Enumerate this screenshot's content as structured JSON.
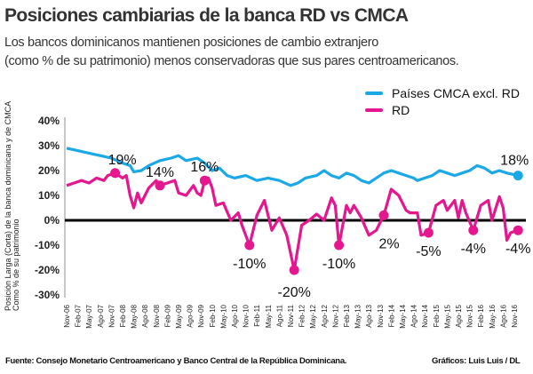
{
  "title": "Posiciones cambiarias de la banca RD vs CMCA",
  "subtitle": [
    "Los bancos dominicanos mantienen posiciones de cambio extranjero",
    "(como % de su patrimonio) menos conservadoras que sus pares centroamericanos."
  ],
  "footer": {
    "source": "Fuente:  Consejo Monetario Centroamericano y Banco Central de la República Dominicana.",
    "credit": "Gráficos: Luis Luis / DL"
  },
  "chart_data": {
    "type": "line",
    "ylabel": [
      "Posición Larga (Corta) de la banca dominicana y de CMCA",
      "Como % de su patrimonio"
    ],
    "ylim": [
      -30,
      40
    ],
    "yticks": [
      40,
      30,
      20,
      10,
      0,
      -10,
      -20,
      -30
    ],
    "ytick_labels": [
      "40%",
      "30%",
      "20%",
      "10%",
      "0%",
      "-10%",
      "-20%",
      "-30%"
    ],
    "xticks": [
      "Nov-06",
      "Feb-07",
      "May-07",
      "Ago-07",
      "Nov-07",
      "Feb-08",
      "May-08",
      "Ago-08",
      "Nov-08",
      "Feb-09",
      "May-09",
      "Ago-09",
      "Nov-09",
      "Feb-10",
      "May-10",
      "Ago-10",
      "Nov-10",
      "Feb-11",
      "May-11",
      "Ago-11",
      "Nov-11",
      "Feb-12",
      "May-12",
      "Ago-12",
      "Nov-12",
      "Feb-13",
      "May-13",
      "Ago-13",
      "Nov-13",
      "Feb-14",
      "May-14",
      "Ago-14",
      "Nov-14",
      "Feb-15",
      "May-15",
      "Ago-15",
      "Nov-15",
      "Feb-16",
      "May-16",
      "Ago-16",
      "Nov-16"
    ],
    "legend_position": "top-right",
    "grid": false,
    "series": [
      {
        "name": "Países CMCA excl. RD",
        "color": "#1ba8e6",
        "points": [
          [
            "2006-11",
            29
          ],
          [
            "2007-02",
            28
          ],
          [
            "2007-05",
            27
          ],
          [
            "2007-08",
            26
          ],
          [
            "2007-11",
            25
          ],
          [
            "2008-02",
            23
          ],
          [
            "2008-04",
            22
          ],
          [
            "2008-05",
            19.5
          ],
          [
            "2008-07",
            20
          ],
          [
            "2008-09",
            22
          ],
          [
            "2008-12",
            24
          ],
          [
            "2009-03",
            25
          ],
          [
            "2009-05",
            26
          ],
          [
            "2009-07",
            24
          ],
          [
            "2009-10",
            25
          ],
          [
            "2009-12",
            23
          ],
          [
            "2010-02",
            20
          ],
          [
            "2010-04",
            21
          ],
          [
            "2010-06",
            18
          ],
          [
            "2010-08",
            17
          ],
          [
            "2010-11",
            18
          ],
          [
            "2011-02",
            16
          ],
          [
            "2011-05",
            17
          ],
          [
            "2011-08",
            16
          ],
          [
            "2011-11",
            14
          ],
          [
            "2012-01",
            15
          ],
          [
            "2012-03",
            17
          ],
          [
            "2012-06",
            18
          ],
          [
            "2012-08",
            20
          ],
          [
            "2012-10",
            18
          ],
          [
            "2012-12",
            17
          ],
          [
            "2013-02",
            19
          ],
          [
            "2013-04",
            18
          ],
          [
            "2013-06",
            16
          ],
          [
            "2013-08",
            15
          ],
          [
            "2013-10",
            17
          ],
          [
            "2013-12",
            19
          ],
          [
            "2014-02",
            20
          ],
          [
            "2014-04",
            19
          ],
          [
            "2014-06",
            18
          ],
          [
            "2014-08",
            17
          ],
          [
            "2014-09",
            16
          ],
          [
            "2014-11",
            17
          ],
          [
            "2015-01",
            18
          ],
          [
            "2015-03",
            20
          ],
          [
            "2015-05",
            19
          ],
          [
            "2015-07",
            18
          ],
          [
            "2015-09",
            19
          ],
          [
            "2015-11",
            20
          ],
          [
            "2016-01",
            22
          ],
          [
            "2016-03",
            21
          ],
          [
            "2016-05",
            19
          ],
          [
            "2016-07",
            20
          ],
          [
            "2016-09",
            19
          ],
          [
            "2016-12",
            18
          ]
        ]
      },
      {
        "name": "RD",
        "color": "#e5168e",
        "points": [
          [
            "2006-11",
            14
          ],
          [
            "2007-01",
            15
          ],
          [
            "2007-03",
            16
          ],
          [
            "2007-05",
            15
          ],
          [
            "2007-07",
            17
          ],
          [
            "2007-09",
            16
          ],
          [
            "2007-10",
            18
          ],
          [
            "2007-12",
            19
          ],
          [
            "2008-02",
            17
          ],
          [
            "2008-03",
            18
          ],
          [
            "2008-04",
            10
          ],
          [
            "2008-05",
            5
          ],
          [
            "2008-06",
            11
          ],
          [
            "2008-07",
            7
          ],
          [
            "2008-09",
            13
          ],
          [
            "2008-11",
            16
          ],
          [
            "2008-12",
            14
          ],
          [
            "2009-02",
            15
          ],
          [
            "2009-04",
            16
          ],
          [
            "2009-05",
            11
          ],
          [
            "2009-07",
            10
          ],
          [
            "2009-09",
            14
          ],
          [
            "2009-10",
            11
          ],
          [
            "2009-11",
            10
          ],
          [
            "2009-12",
            16
          ],
          [
            "2010-01",
            17
          ],
          [
            "2010-02",
            13
          ],
          [
            "2010-03",
            6
          ],
          [
            "2010-05",
            7
          ],
          [
            "2010-07",
            0
          ],
          [
            "2010-09",
            3
          ],
          [
            "2010-10",
            -2
          ],
          [
            "2010-12",
            -10
          ],
          [
            "2011-02",
            2
          ],
          [
            "2011-04",
            8
          ],
          [
            "2011-06",
            -4
          ],
          [
            "2011-08",
            1
          ],
          [
            "2011-10",
            -6
          ],
          [
            "2011-12",
            -20
          ],
          [
            "2012-02",
            -2
          ],
          [
            "2012-04",
            0
          ],
          [
            "2012-06",
            2.5
          ],
          [
            "2012-08",
            0
          ],
          [
            "2012-10",
            9
          ],
          [
            "2012-11",
            6
          ],
          [
            "2012-12",
            -10
          ],
          [
            "2013-02",
            6
          ],
          [
            "2013-03",
            3
          ],
          [
            "2013-04",
            6
          ],
          [
            "2013-06",
            1
          ],
          [
            "2013-08",
            -6
          ],
          [
            "2013-10",
            -4
          ],
          [
            "2013-12",
            2
          ],
          [
            "2014-02",
            12.5
          ],
          [
            "2014-04",
            10
          ],
          [
            "2014-06",
            4
          ],
          [
            "2014-07",
            3
          ],
          [
            "2014-09",
            3
          ],
          [
            "2014-10",
            -6
          ],
          [
            "2014-12",
            -5
          ],
          [
            "2015-02",
            6
          ],
          [
            "2015-04",
            8
          ],
          [
            "2015-05",
            4
          ],
          [
            "2015-07",
            8
          ],
          [
            "2015-08",
            1
          ],
          [
            "2015-09",
            8
          ],
          [
            "2015-10",
            3
          ],
          [
            "2015-12",
            -4
          ],
          [
            "2016-02",
            6
          ],
          [
            "2016-04",
            8
          ],
          [
            "2016-05",
            0
          ],
          [
            "2016-07",
            9.5
          ],
          [
            "2016-08",
            5
          ],
          [
            "2016-09",
            -8
          ],
          [
            "2016-10",
            -5
          ],
          [
            "2016-12",
            -4
          ]
        ]
      }
    ],
    "annotations": [
      {
        "series": 1,
        "date": "2007-12",
        "text": "19%",
        "pos": "above"
      },
      {
        "series": 1,
        "date": "2008-12",
        "text": "14%",
        "pos": "above"
      },
      {
        "series": 1,
        "date": "2009-12",
        "text": "16%",
        "pos": "above"
      },
      {
        "series": 1,
        "date": "2010-12",
        "text": "-10%",
        "pos": "below"
      },
      {
        "series": 1,
        "date": "2011-12",
        "text": "-20%",
        "pos": "below"
      },
      {
        "series": 1,
        "date": "2012-12",
        "text": "-10%",
        "pos": "below"
      },
      {
        "series": 1,
        "date": "2013-12",
        "text": "2%",
        "pos": "below"
      },
      {
        "series": 1,
        "date": "2014-12",
        "text": "-5%",
        "pos": "below"
      },
      {
        "series": 1,
        "date": "2015-12",
        "text": "-4%",
        "pos": "below"
      },
      {
        "series": 1,
        "date": "2016-12",
        "text": "-4%",
        "pos": "below"
      },
      {
        "series": 0,
        "date": "2016-12",
        "text": "18%",
        "pos": "above"
      }
    ]
  }
}
